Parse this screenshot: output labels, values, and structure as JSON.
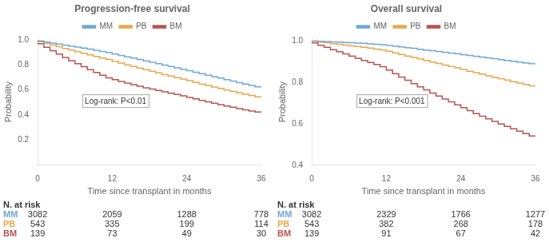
{
  "chart_data": [
    {
      "type": "step",
      "title": "Progression-free survival",
      "x_label": "Time since transplant in months",
      "y_label": "Probability",
      "x": [
        0,
        1,
        2,
        3,
        4,
        5,
        6,
        7,
        8,
        9,
        10,
        11,
        12,
        13,
        14,
        15,
        16,
        17,
        18,
        19,
        20,
        21,
        22,
        23,
        24,
        25,
        26,
        27,
        28,
        29,
        30,
        31,
        32,
        33,
        34,
        35,
        36
      ],
      "series": [
        {
          "name": "MM",
          "color": "#6fa8d6",
          "values": [
            1.0,
            0.992,
            0.983,
            0.975,
            0.967,
            0.958,
            0.95,
            0.942,
            0.934,
            0.926,
            0.917,
            0.908,
            0.899,
            0.887,
            0.876,
            0.865,
            0.854,
            0.843,
            0.832,
            0.821,
            0.81,
            0.799,
            0.788,
            0.777,
            0.766,
            0.754,
            0.742,
            0.73,
            0.718,
            0.706,
            0.695,
            0.683,
            0.671,
            0.659,
            0.648,
            0.637,
            0.625
          ]
        },
        {
          "name": "PB",
          "color": "#e8a84a",
          "values": [
            1.0,
            0.986,
            0.972,
            0.958,
            0.945,
            0.932,
            0.919,
            0.906,
            0.893,
            0.88,
            0.867,
            0.855,
            0.843,
            0.829,
            0.815,
            0.801,
            0.788,
            0.775,
            0.762,
            0.749,
            0.736,
            0.723,
            0.711,
            0.699,
            0.687,
            0.674,
            0.661,
            0.648,
            0.636,
            0.624,
            0.612,
            0.6,
            0.589,
            0.578,
            0.567,
            0.556,
            0.546
          ]
        },
        {
          "name": "BM",
          "color": "#b85450",
          "values": [
            1.0,
            0.97,
            0.941,
            0.913,
            0.886,
            0.86,
            0.834,
            0.81,
            0.786,
            0.762,
            0.74,
            0.718,
            0.697,
            0.683,
            0.669,
            0.656,
            0.643,
            0.63,
            0.618,
            0.607,
            0.596,
            0.585,
            0.574,
            0.564,
            0.554,
            0.541,
            0.529,
            0.517,
            0.505,
            0.494,
            0.483,
            0.472,
            0.462,
            0.452,
            0.442,
            0.433,
            0.424
          ]
        }
      ],
      "xlim": [
        0,
        36
      ],
      "xticks": [
        0,
        12,
        24,
        36
      ],
      "ylim": [
        0.0,
        1.01
      ],
      "yticks": [
        0.2,
        0.4,
        0.6,
        0.8,
        {
          "value": 1.0,
          "label": "1.0"
        }
      ],
      "grid": false,
      "legend": "top",
      "annotations": [
        "Log-rank: P<0.01"
      ],
      "risk_table": {
        "title": "N. at risk",
        "x": [
          0,
          12,
          24,
          36
        ],
        "rows": [
          {
            "name": "MM",
            "color": "#6fa8d6",
            "values": [
              3082,
              2059,
              1288,
              778
            ]
          },
          {
            "name": "PB",
            "color": "#e8a84a",
            "values": [
              543,
              335,
              199,
              114
            ]
          },
          {
            "name": "BM",
            "color": "#b85450",
            "values": [
              139,
              73,
              49,
              30
            ]
          }
        ]
      }
    },
    {
      "type": "step",
      "title": "Overall survival",
      "x_label": "Time since transplant in months",
      "y_label": "Probability",
      "x": [
        0,
        1,
        2,
        3,
        4,
        5,
        6,
        7,
        8,
        9,
        10,
        11,
        12,
        13,
        14,
        15,
        16,
        17,
        18,
        19,
        20,
        21,
        22,
        23,
        24,
        25,
        26,
        27,
        28,
        29,
        30,
        31,
        32,
        33,
        34,
        35,
        36
      ],
      "series": [
        {
          "name": "MM",
          "color": "#6fa8d6",
          "values": [
            1.0,
            0.999,
            0.997,
            0.996,
            0.994,
            0.993,
            0.991,
            0.99,
            0.988,
            0.987,
            0.985,
            0.983,
            0.981,
            0.978,
            0.974,
            0.97,
            0.966,
            0.963,
            0.959,
            0.955,
            0.952,
            0.948,
            0.944,
            0.94,
            0.937,
            0.933,
            0.929,
            0.925,
            0.921,
            0.917,
            0.913,
            0.909,
            0.905,
            0.901,
            0.897,
            0.893,
            0.889
          ]
        },
        {
          "name": "PB",
          "color": "#e8a84a",
          "values": [
            1.0,
            0.997,
            0.993,
            0.99,
            0.986,
            0.983,
            0.979,
            0.975,
            0.972,
            0.968,
            0.964,
            0.96,
            0.956,
            0.949,
            0.941,
            0.934,
            0.926,
            0.919,
            0.912,
            0.905,
            0.897,
            0.89,
            0.883,
            0.876,
            0.869,
            0.861,
            0.853,
            0.846,
            0.839,
            0.831,
            0.824,
            0.817,
            0.81,
            0.803,
            0.796,
            0.789,
            0.782
          ]
        },
        {
          "name": "BM",
          "color": "#b85450",
          "values": [
            1.0,
            0.989,
            0.978,
            0.968,
            0.957,
            0.947,
            0.936,
            0.926,
            0.915,
            0.905,
            0.895,
            0.885,
            0.875,
            0.858,
            0.841,
            0.825,
            0.809,
            0.793,
            0.778,
            0.763,
            0.748,
            0.733,
            0.719,
            0.705,
            0.691,
            0.677,
            0.663,
            0.649,
            0.636,
            0.624,
            0.611,
            0.599,
            0.587,
            0.575,
            0.564,
            0.552,
            0.541
          ]
        }
      ],
      "xlim": [
        0,
        36
      ],
      "xticks": [
        0,
        12,
        24,
        36
      ],
      "ylim": [
        0.4,
        1.01
      ],
      "yticks": [
        0.4,
        0.6,
        0.8,
        {
          "value": 1.0,
          "label": "1.0"
        }
      ],
      "grid": false,
      "legend": "top",
      "annotations": [
        "Log-rank: P<0.001"
      ],
      "risk_table": {
        "title": "N. at risk",
        "x": [
          0,
          12,
          24,
          36
        ],
        "rows": [
          {
            "name": "MM",
            "color": "#6fa8d6",
            "values": [
              3082,
              2329,
              1766,
              1277
            ]
          },
          {
            "name": "PB",
            "color": "#e8a84a",
            "values": [
              543,
              382,
              268,
              178
            ]
          },
          {
            "name": "BM",
            "color": "#b85450",
            "values": [
              139,
              91,
              67,
              42
            ]
          }
        ]
      }
    }
  ]
}
